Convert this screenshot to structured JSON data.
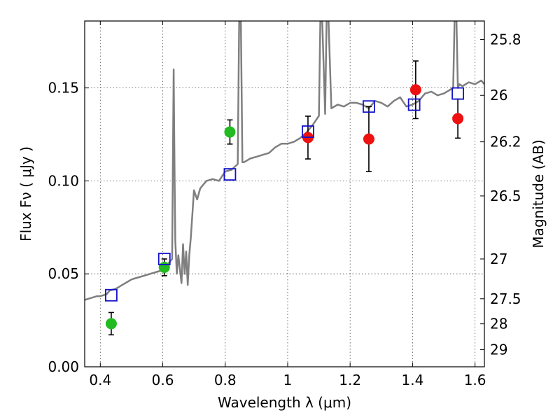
{
  "chart_data": {
    "type": "scatter",
    "xlabel": "Wavelength  λ (μm)",
    "ylabel": "Flux  Fν  ( μJy )",
    "ylabel_right": "Magnitude (AB)",
    "xlim": [
      0.35,
      1.63
    ],
    "ylim": [
      0.0,
      0.186
    ],
    "grid": true,
    "x_ticks": [
      0.4,
      0.6,
      0.8,
      1.0,
      1.2,
      1.4,
      1.6
    ],
    "x_tick_labels": [
      "0.4",
      "0.6",
      "0.8",
      "1",
      "1.2",
      "1.4",
      "1.6"
    ],
    "y_ticks": [
      0.0,
      0.05,
      0.1,
      0.15
    ],
    "y_tick_labels": [
      "0.00",
      "0.05",
      "0.10",
      "0.15"
    ],
    "right_ticks": [
      {
        "label": "25.8",
        "flux": 0.176
      },
      {
        "label": "26",
        "flux": 0.146
      },
      {
        "label": "26.2",
        "flux": 0.121
      },
      {
        "label": "26.5",
        "flux": 0.0919
      },
      {
        "label": "27",
        "flux": 0.058
      },
      {
        "label": "27.5",
        "flux": 0.0366
      },
      {
        "label": "28",
        "flux": 0.0231
      },
      {
        "label": "29",
        "flux": 0.0092
      }
    ],
    "series": [
      {
        "kind": "line",
        "color": "#7f7f7f",
        "x": [
          0.35,
          0.37,
          0.39,
          0.4,
          0.42,
          0.43,
          0.45,
          0.46,
          0.47,
          0.48,
          0.5,
          0.52,
          0.54,
          0.56,
          0.58,
          0.6,
          0.61,
          0.62,
          0.63,
          0.635,
          0.638,
          0.64,
          0.645,
          0.65,
          0.66,
          0.665,
          0.67,
          0.675,
          0.68,
          0.685,
          0.69,
          0.7,
          0.71,
          0.72,
          0.73,
          0.74,
          0.76,
          0.78,
          0.8,
          0.82,
          0.84,
          0.845,
          0.85,
          0.855,
          0.86,
          0.87,
          0.88,
          0.9,
          0.92,
          0.94,
          0.96,
          0.98,
          1.0,
          1.02,
          1.04,
          1.06,
          1.08,
          1.1,
          1.105,
          1.11,
          1.12,
          1.125,
          1.13,
          1.14,
          1.16,
          1.18,
          1.2,
          1.22,
          1.24,
          1.26,
          1.28,
          1.3,
          1.32,
          1.34,
          1.36,
          1.38,
          1.4,
          1.42,
          1.44,
          1.46,
          1.48,
          1.5,
          1.52,
          1.53,
          1.535,
          1.54,
          1.545,
          1.55,
          1.56,
          1.58,
          1.6,
          1.62,
          1.63
        ],
        "y": [
          0.036,
          0.037,
          0.038,
          0.038,
          0.039,
          0.041,
          0.042,
          0.043,
          0.044,
          0.045,
          0.047,
          0.048,
          0.049,
          0.05,
          0.051,
          0.052,
          0.054,
          0.056,
          0.058,
          0.16,
          0.1,
          0.068,
          0.05,
          0.06,
          0.045,
          0.066,
          0.05,
          0.062,
          0.044,
          0.06,
          0.07,
          0.095,
          0.09,
          0.096,
          0.098,
          0.1,
          0.101,
          0.1,
          0.105,
          0.106,
          0.109,
          0.19,
          0.19,
          0.11,
          0.11,
          0.111,
          0.112,
          0.113,
          0.114,
          0.115,
          0.118,
          0.12,
          0.12,
          0.121,
          0.123,
          0.126,
          0.13,
          0.135,
          0.19,
          0.19,
          0.136,
          0.19,
          0.19,
          0.139,
          0.141,
          0.14,
          0.142,
          0.142,
          0.141,
          0.139,
          0.143,
          0.142,
          0.14,
          0.143,
          0.145,
          0.14,
          0.141,
          0.143,
          0.147,
          0.148,
          0.146,
          0.147,
          0.149,
          0.15,
          0.19,
          0.19,
          0.15,
          0.152,
          0.151,
          0.153,
          0.152,
          0.154,
          0.152
        ]
      },
      {
        "kind": "points",
        "marker": "circle",
        "color": "#22bb22",
        "x": [
          0.435,
          0.605,
          0.815
        ],
        "y": [
          0.0232,
          0.0535,
          0.1263
        ],
        "yerr": [
          0.006,
          0.0045,
          0.0065
        ]
      },
      {
        "kind": "points",
        "marker": "circle",
        "color": "#ee1111",
        "x": [
          1.065,
          1.26,
          1.41,
          1.545
        ],
        "y": [
          0.1233,
          0.1225,
          0.149,
          0.1335
        ],
        "yerr": [
          0.0115,
          0.0175,
          0.0155,
          0.0105
        ]
      },
      {
        "kind": "points",
        "marker": "square",
        "color": "#1111cc",
        "x": [
          0.435,
          0.605,
          0.815,
          1.065,
          1.26,
          1.405,
          1.545
        ],
        "y": [
          0.0385,
          0.058,
          0.1035,
          0.1265,
          0.14,
          0.141,
          0.147
        ]
      }
    ]
  }
}
